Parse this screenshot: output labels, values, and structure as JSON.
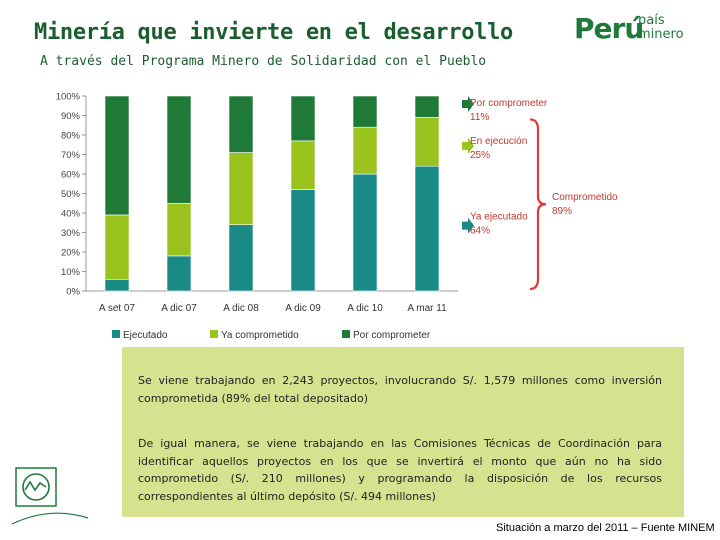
{
  "header": {
    "title": "Minería que invierte en el desarrollo",
    "subtitle": "A través del Programa Minero de Solidaridad con el Pueblo"
  },
  "logo": {
    "brand": "Perú",
    "tagline_1": "país",
    "tagline_2": "minero",
    "color": "#1e7a3c"
  },
  "chart_data": {
    "type": "bar",
    "stacked": true,
    "percent": true,
    "categories": [
      "A set 07",
      "A dic 07",
      "A dic 08",
      "A dic 09",
      "A dic 10",
      "A mar 11"
    ],
    "series": [
      {
        "name": "Ejecutado",
        "color": "#1a8a86",
        "values": [
          6,
          18,
          34,
          52,
          60,
          64
        ]
      },
      {
        "name": "Ya comprometido",
        "color": "#9bc31e",
        "values": [
          33,
          27,
          37,
          25,
          24,
          25
        ]
      },
      {
        "name": "Por comprometer",
        "color": "#1e7a36",
        "values": [
          61,
          55,
          29,
          23,
          16,
          11
        ]
      }
    ],
    "y_ticks": [
      "0%",
      "10%",
      "20%",
      "30%",
      "40%",
      "50%",
      "60%",
      "70%",
      "80%",
      "90%",
      "100%"
    ],
    "ylim": [
      0,
      100
    ],
    "legend_position": "bottom",
    "annotations": {
      "por_comprometer": {
        "label": "Por comprometer",
        "value": "11%"
      },
      "en_ejecucion": {
        "label": "En ejecución",
        "value": "25%"
      },
      "ya_ejecutado": {
        "label": "Ya ejecutado",
        "value": "64%"
      },
      "comprometido": {
        "label": "Comprometido",
        "value": "89%"
      }
    },
    "bracket_color": "#e03a3a"
  },
  "info": {
    "paragraph1": "Se viene trabajando en 2,243 proyectos, involucrando S/. 1,579 millones como inversión comprometida (89% del total depositado)",
    "paragraph2": "De igual manera, se viene trabajando en las Comisiones Técnicas de Coordinación para identificar aquellos proyectos en los que se invertirá el monto que aún no ha sido comprometido (S/. 210 millones) y programando la disposición de los recursos correspondientes al último depósito (S/. 494 millones)"
  },
  "footer": {
    "source": "Situación a marzo del 2011 – Fuente MINEM"
  }
}
